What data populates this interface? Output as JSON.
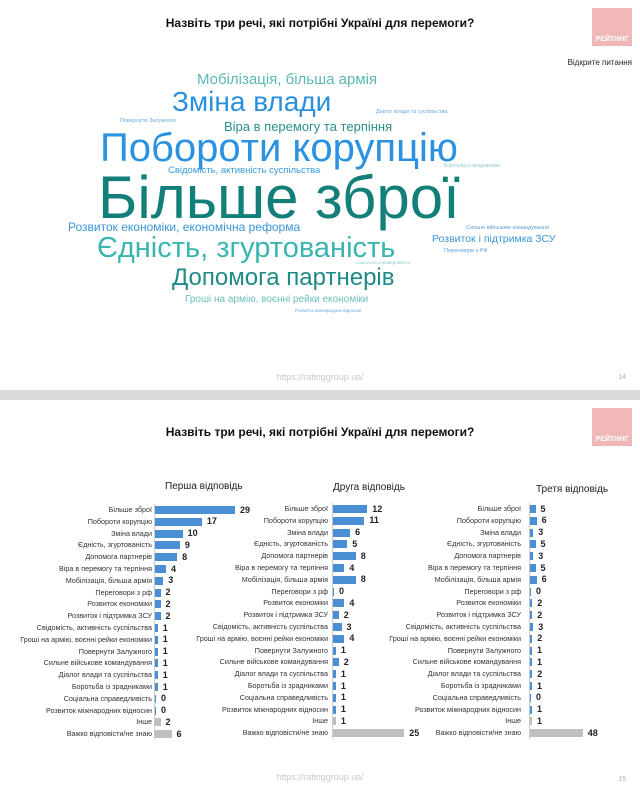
{
  "slide1": {
    "title": "Назвіть три речі, які потрібні Україні для перемоги?",
    "logo": "РЕЙТИНГ",
    "subtitle": "Відкрите питання",
    "url": "https://ratinggroup.ua/",
    "page": "14",
    "words": [
      {
        "text": "Мобілізація, більша армія",
        "color": "#5bb7b5"
      },
      {
        "text": "Зміна влади",
        "color": "#2a8fdc"
      },
      {
        "text": "Діалог влади та суспільства",
        "color": "#6aa8dc"
      },
      {
        "text": "Повернути Залужного",
        "color": "#6aa8dc"
      },
      {
        "text": "Віра в перемогу та терпіння",
        "color": "#2c8f8a"
      },
      {
        "text": "Поборoти корупцію",
        "color": "#2a92e0"
      },
      {
        "text": "Боротьба із зрадниками",
        "color": "#8ccaca"
      },
      {
        "text": "Свідомість, активність суспільства",
        "color": "#3b9ad8"
      },
      {
        "text": "Більше зброї",
        "color": "#127f78"
      },
      {
        "text": "Сильне військове командування",
        "color": "#5b9fd0"
      },
      {
        "text": "Розвиток економіки, економічна реформа",
        "color": "#3b95d6"
      },
      {
        "text": "Розвиток і підтримка ЗСУ",
        "color": "#3b95d6"
      },
      {
        "text": "Єдність, згуртованість",
        "color": "#3ab5b0"
      },
      {
        "text": "Переговори з РФ",
        "color": "#5b9fd0"
      },
      {
        "text": "Соціальна справедливість",
        "color": "#8ccaca"
      },
      {
        "text": "Допомога партнерів",
        "color": "#1f8a87"
      },
      {
        "text": "Гроші на армію, воєнні рейки економіки",
        "color": "#6cc0bd"
      },
      {
        "text": "Розвиток міжнародних відносин",
        "color": "#6aa8dc"
      }
    ]
  },
  "slide2": {
    "title": "Назвіть три речі, які потрібні Україні для перемоги?",
    "logo": "РЕЙТИНГ",
    "url": "https://ratinggroup.ua/",
    "page": "15"
  },
  "chart_data": [
    {
      "type": "bar",
      "orientation": "horizontal",
      "title": "Перша відповідь",
      "categories": [
        "Більше зброї",
        "Поборoти корупцію",
        "Зміна влади",
        "Єдність, згуртованість",
        "Допомога партнерів",
        "Віра в перемогу та терпіння",
        "Мобілізація, більша армія",
        "Переговори з рф",
        "Розвиток економіки",
        "Розвиток і підтримка ЗСУ",
        "Свідомість, активність суспільства",
        "Гроші на армію, воєнні рейки економіки",
        "Повернути Залужного",
        "Сильне військове командування",
        "Діалог влади та суспільства",
        "Боротьба із зрадниками",
        "Соціальна справедливість",
        "Розвиток міжнародних відносин",
        "Інше",
        "Важко відповісти/не знаю"
      ],
      "values": [
        29,
        17,
        10,
        9,
        8,
        4,
        3,
        2,
        2,
        2,
        1,
        1,
        1,
        1,
        1,
        1,
        0,
        0,
        2,
        6
      ],
      "bar_color": "#4a8fd4",
      "muted_color": "#bfbfbf"
    },
    {
      "type": "bar",
      "orientation": "horizontal",
      "title": "Друга відповідь",
      "categories": [
        "Більше зброї",
        "Поборoти корупцію",
        "Зміна влади",
        "Єдність, згуртованість",
        "Допомога партнерів",
        "Віра в перемогу та терпіння",
        "Мобілізація, більша армія",
        "Переговори з рф",
        "Розвиток економіки",
        "Розвиток і підтримка ЗСУ",
        "Свідомість, активність суспільства",
        "Гроші на армію, воєнні рейки економіки",
        "Повернути Залужного",
        "Сильне військове командування",
        "Діалог влади та суспільства",
        "Боротьба із зрадниками",
        "Соціальна справедливість",
        "Розвиток міжнародних відносин",
        "Інше",
        "Важко відповісти/не знаю"
      ],
      "values": [
        12,
        11,
        6,
        5,
        8,
        4,
        8,
        0,
        4,
        2,
        3,
        4,
        1,
        2,
        1,
        1,
        1,
        1,
        1,
        25
      ],
      "bar_color": "#4a8fd4",
      "muted_color": "#bfbfbf"
    },
    {
      "type": "bar",
      "orientation": "horizontal",
      "title": "Третя відповідь",
      "categories": [
        "Більше зброї",
        "Поборoти корупцію",
        "Зміна влади",
        "Єдність, згуртованість",
        "Допомога партнерів",
        "Віра в перемогу та терпіння",
        "Мобілізація, більша армія",
        "Переговори з рф",
        "Розвиток економіки",
        "Розвиток і підтримка ЗСУ",
        "Свідомість, активність суспільства",
        "Гроші на армію, воєнні рейки економіки",
        "Повернути Залужного",
        "Сильне військове командування",
        "Діалог влади та суспільства",
        "Боротьба із зрадниками",
        "Соціальна справедливість",
        "Розвиток міжнародних відносин",
        "Інше",
        "Важко відповісти/не знаю"
      ],
      "values": [
        5,
        6,
        3,
        5,
        3,
        5,
        6,
        0,
        2,
        2,
        3,
        2,
        1,
        1,
        2,
        1,
        0,
        1,
        1,
        48
      ],
      "bar_color": "#4a8fd4",
      "muted_color": "#bfbfbf"
    }
  ]
}
